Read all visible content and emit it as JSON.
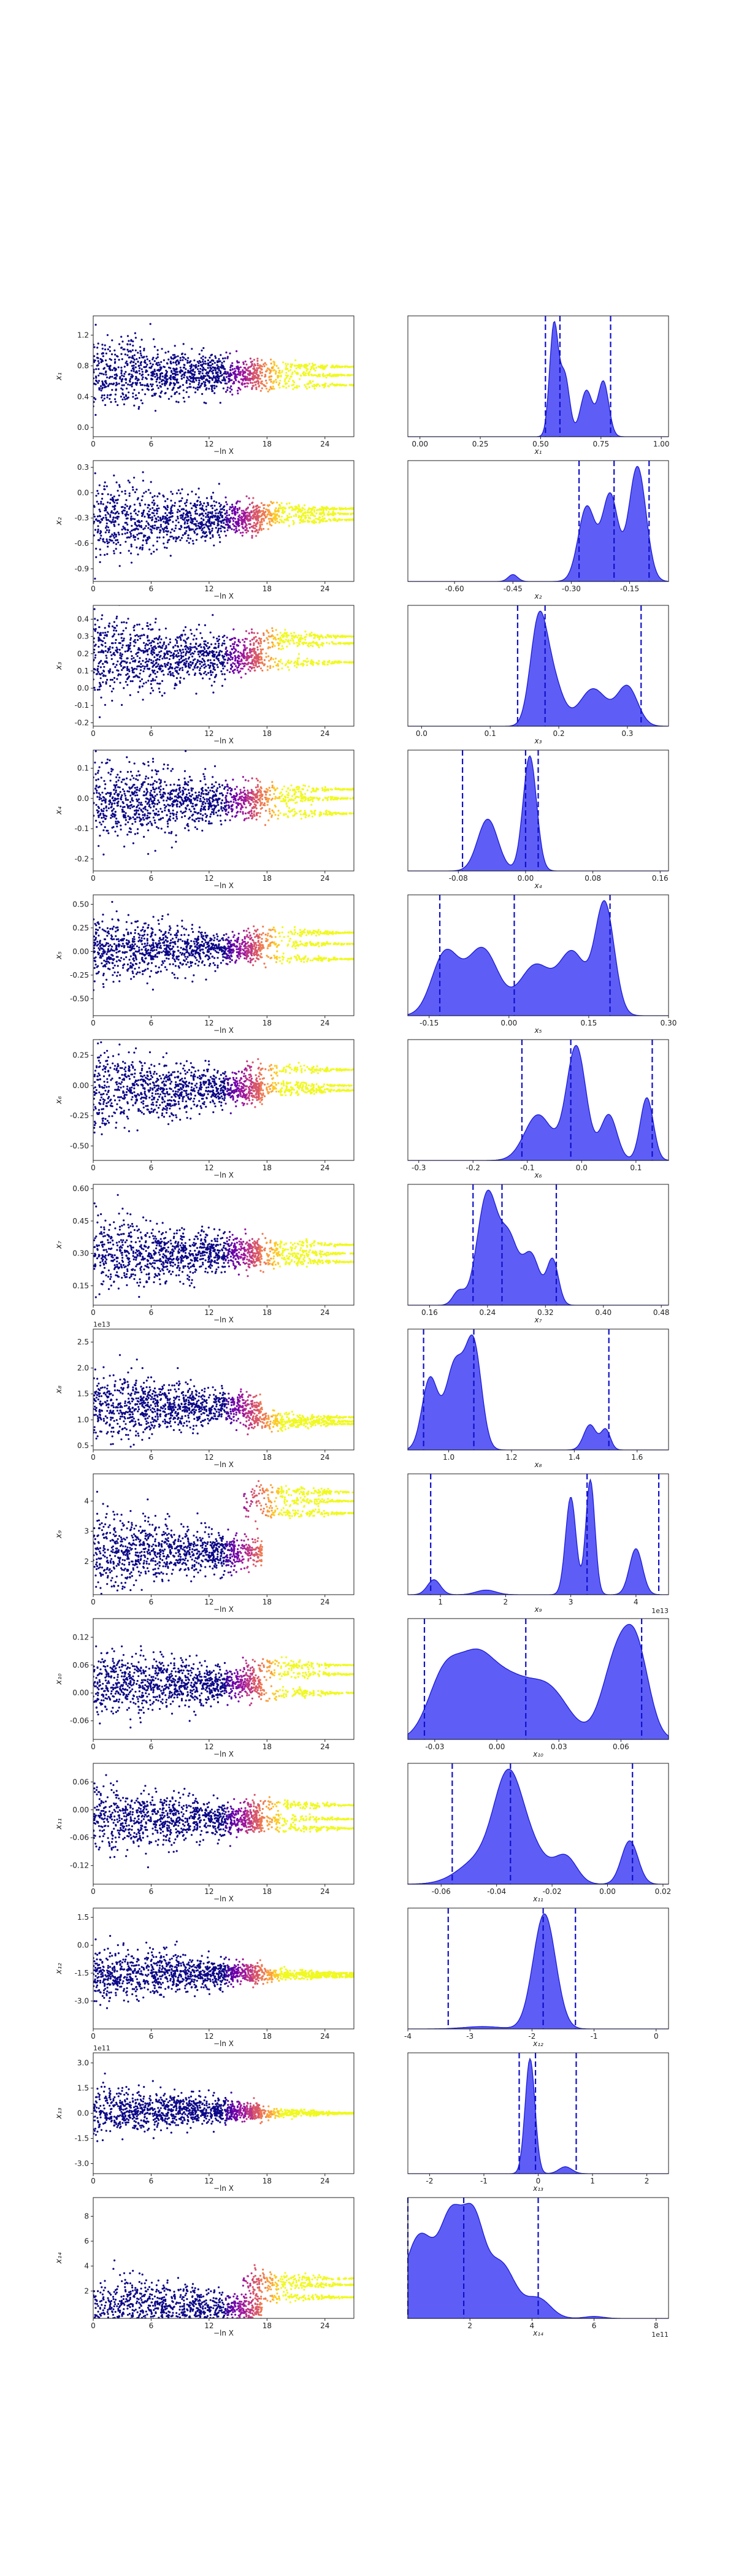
{
  "figure": {
    "scatter_xlabel": "−ln X",
    "scatter_colormap": [
      "#0d0887",
      "#46039f",
      "#7201a8",
      "#9c179e",
      "#bd3786",
      "#d8576b",
      "#ed7953",
      "#fb9f3a",
      "#fdca26",
      "#f0f921"
    ],
    "hist_fill_color": "#3b3bf5",
    "hist_line_color": "#1a1ad6",
    "quantile_line_style": "dashed"
  },
  "chart_data": [
    {
      "type": "scatter",
      "param": "x_1",
      "ylabel": "x₁",
      "xlabel": "−ln X",
      "xticks": [
        0,
        6,
        12,
        18,
        24
      ],
      "xlim": [
        0,
        27
      ],
      "yticks": [
        "0.0",
        "0.4",
        "0.8",
        "1.2"
      ],
      "ylim": [
        -0.12,
        1.45
      ],
      "center": 0.7,
      "spread": 0.32,
      "final_values": [
        0.55,
        0.68,
        0.79
      ]
    },
    {
      "type": "area",
      "param": "x_1",
      "xlabel": "x₁",
      "xticks": [
        "0.00",
        "0.25",
        "0.50",
        "0.75",
        "1.00"
      ],
      "xlim": [
        -0.05,
        1.03
      ],
      "peaks": [
        [
          0.555,
          1.0,
          0.018
        ],
        [
          0.6,
          0.55,
          0.02
        ],
        [
          0.69,
          0.42,
          0.025
        ],
        [
          0.76,
          0.5,
          0.022
        ]
      ],
      "quantiles": [
        0.52,
        0.58,
        0.79
      ]
    },
    {
      "type": "scatter",
      "param": "x_2",
      "ylabel": "x₂",
      "xlabel": "−ln X",
      "xticks": [
        0,
        6,
        12,
        18,
        24
      ],
      "xlim": [
        0,
        27
      ],
      "yticks": [
        "-0.9",
        "-0.6",
        "-0.3",
        "0.0",
        "0.3"
      ],
      "ylim": [
        -1.05,
        0.38
      ],
      "center": -0.3,
      "spread": 0.32,
      "final_values": [
        -0.25,
        -0.19,
        -0.32
      ]
    },
    {
      "type": "area",
      "param": "x_2",
      "xlabel": "x₂",
      "xticks": [
        "-0.60",
        "-0.45",
        "-0.30",
        "-0.15"
      ],
      "xlim": [
        -0.72,
        -0.05
      ],
      "peaks": [
        [
          -0.45,
          0.06,
          0.012
        ],
        [
          -0.26,
          0.65,
          0.022
        ],
        [
          -0.2,
          0.75,
          0.02
        ],
        [
          -0.13,
          1.0,
          0.022
        ]
      ],
      "quantiles": [
        -0.28,
        -0.19,
        -0.1
      ]
    },
    {
      "type": "scatter",
      "param": "x_3",
      "ylabel": "x₃",
      "xlabel": "−ln X",
      "xticks": [
        0,
        6,
        12,
        18,
        24
      ],
      "xlim": [
        0,
        27
      ],
      "yticks": [
        "-0.2",
        "-0.1",
        "0.0",
        "0.1",
        "0.2",
        "0.3",
        "0.4"
      ],
      "ylim": [
        -0.22,
        0.48
      ],
      "center": 0.18,
      "spread": 0.16,
      "final_values": [
        0.26,
        0.15,
        0.3
      ]
    },
    {
      "type": "area",
      "param": "x_3",
      "xlabel": "x₃",
      "xticks": [
        "0.0",
        "0.1",
        "0.2",
        "0.3"
      ],
      "xlim": [
        -0.02,
        0.36
      ],
      "peaks": [
        [
          0.17,
          1.0,
          0.012
        ],
        [
          0.19,
          0.5,
          0.015
        ],
        [
          0.25,
          0.4,
          0.02
        ],
        [
          0.3,
          0.42,
          0.015
        ]
      ],
      "quantiles": [
        0.14,
        0.18,
        0.32
      ]
    },
    {
      "type": "scatter",
      "param": "x_4",
      "ylabel": "x₄",
      "xlabel": "−ln X",
      "xticks": [
        0,
        6,
        12,
        18,
        24
      ],
      "xlim": [
        0,
        27
      ],
      "yticks": [
        "-0.2",
        "-0.1",
        "0.0",
        "0.1"
      ],
      "ylim": [
        -0.24,
        0.16
      ],
      "center": -0.01,
      "spread": 0.09,
      "final_values": [
        0.0,
        -0.05,
        0.03
      ]
    },
    {
      "type": "area",
      "param": "x_4",
      "xlabel": "x₄",
      "xticks": [
        "-0.08",
        "0.00",
        "0.08",
        "0.16"
      ],
      "xlim": [
        -0.14,
        0.17
      ],
      "peaks": [
        [
          -0.045,
          0.45,
          0.012
        ],
        [
          0.005,
          1.0,
          0.008
        ]
      ],
      "quantiles": [
        -0.075,
        0.0,
        0.015
      ]
    },
    {
      "type": "scatter",
      "param": "x_5",
      "ylabel": "x₅",
      "xlabel": "−ln X",
      "xticks": [
        0,
        6,
        12,
        18,
        24
      ],
      "xlim": [
        0,
        27
      ],
      "yticks": [
        "-0.50",
        "-0.25",
        "0.00",
        "0.25",
        "0.50"
      ],
      "ylim": [
        -0.68,
        0.6
      ],
      "center": 0.03,
      "spread": 0.24,
      "final_values": [
        0.2,
        0.08,
        -0.08
      ]
    },
    {
      "type": "area",
      "param": "x_5",
      "xlabel": "x₅",
      "xticks": [
        "-0.15",
        "0.00",
        "0.15",
        "0.30"
      ],
      "xlim": [
        -0.19,
        0.3
      ],
      "peaks": [
        [
          -0.12,
          0.55,
          0.025
        ],
        [
          -0.05,
          0.6,
          0.03
        ],
        [
          0.05,
          0.45,
          0.03
        ],
        [
          0.12,
          0.55,
          0.025
        ],
        [
          0.18,
          1.0,
          0.018
        ]
      ],
      "quantiles": [
        -0.13,
        0.01,
        0.19
      ]
    },
    {
      "type": "scatter",
      "param": "x_6",
      "ylabel": "x₆",
      "xlabel": "−ln X",
      "xticks": [
        0,
        6,
        12,
        18,
        24
      ],
      "xlim": [
        0,
        27
      ],
      "yticks": [
        "-0.50",
        "-0.25",
        "0.00",
        "0.25"
      ],
      "ylim": [
        -0.62,
        0.38
      ],
      "center": -0.03,
      "spread": 0.22,
      "final_values": [
        0.13,
        0.0,
        -0.04
      ]
    },
    {
      "type": "area",
      "param": "x_6",
      "xlabel": "x₆",
      "xticks": [
        "-0.3",
        "-0.2",
        "-0.1",
        "0.0",
        "0.1"
      ],
      "xlim": [
        -0.32,
        0.16
      ],
      "peaks": [
        [
          -0.08,
          0.4,
          0.025
        ],
        [
          -0.01,
          1.0,
          0.018
        ],
        [
          0.05,
          0.4,
          0.015
        ],
        [
          0.12,
          0.55,
          0.012
        ]
      ],
      "quantiles": [
        -0.11,
        -0.02,
        0.13
      ]
    },
    {
      "type": "scatter",
      "param": "x_7",
      "ylabel": "x₇",
      "xlabel": "−ln X",
      "xticks": [
        0,
        6,
        12,
        18,
        24
      ],
      "xlim": [
        0,
        27
      ],
      "yticks": [
        "0.15",
        "0.30",
        "0.45",
        "0.60"
      ],
      "ylim": [
        0.06,
        0.62
      ],
      "center": 0.3,
      "spread": 0.12,
      "final_values": [
        0.34,
        0.26,
        0.3
      ]
    },
    {
      "type": "area",
      "param": "x_7",
      "xlabel": "x₇",
      "xticks": [
        "0.16",
        "0.24",
        "0.32",
        "0.40",
        "0.48"
      ],
      "xlim": [
        0.13,
        0.49
      ],
      "peaks": [
        [
          0.2,
          0.12,
          0.008
        ],
        [
          0.24,
          1.0,
          0.014
        ],
        [
          0.27,
          0.55,
          0.012
        ],
        [
          0.3,
          0.45,
          0.012
        ],
        [
          0.33,
          0.4,
          0.008
        ]
      ],
      "quantiles": [
        0.22,
        0.26,
        0.335
      ]
    },
    {
      "type": "scatter",
      "param": "x_8",
      "ylabel": "x₈",
      "xlabel": "−ln X",
      "axis_offset_label": "1e13",
      "xticks": [
        0,
        6,
        12,
        18,
        24
      ],
      "xlim": [
        0,
        27
      ],
      "yticks": [
        "0.5",
        "1.0",
        "1.5",
        "2.0",
        "2.5"
      ],
      "ylim": [
        0.42,
        2.75
      ],
      "center": 1.25,
      "spread": 0.45,
      "final_values": [
        1.05,
        0.92,
        0.97
      ]
    },
    {
      "type": "area",
      "param": "x_8",
      "xlabel": "x₈",
      "xticks": [
        "1.0",
        "1.2",
        "1.4",
        "1.6"
      ],
      "xlim": [
        0.87,
        1.7
      ],
      "peaks": [
        [
          0.94,
          0.7,
          0.025
        ],
        [
          1.02,
          0.85,
          0.03
        ],
        [
          1.08,
          1.0,
          0.025
        ],
        [
          1.45,
          0.25,
          0.02
        ],
        [
          1.5,
          0.2,
          0.015
        ]
      ],
      "quantiles": [
        0.92,
        1.08,
        1.51
      ]
    },
    {
      "type": "scatter",
      "param": "x_9",
      "ylabel": "x₉",
      "xlabel": "−ln X",
      "xticks": [
        0,
        6,
        12,
        18,
        24
      ],
      "xlim": [
        0,
        27
      ],
      "yticks": [
        "2",
        "3",
        "4"
      ],
      "ylim": [
        0.9,
        4.9
      ],
      "center": 2.3,
      "spread": 0.9,
      "final_values": [
        4.3,
        3.6,
        4.0
      ]
    },
    {
      "type": "area",
      "param": "x_9",
      "xlabel": "x₉",
      "axis_offset_label": "1e13",
      "xticks": [
        "1",
        "2",
        "3",
        "4"
      ],
      "xlim": [
        0.5,
        4.5
      ],
      "peaks": [
        [
          0.9,
          0.13,
          0.1
        ],
        [
          1.7,
          0.04,
          0.15
        ],
        [
          3.0,
          0.85,
          0.08
        ],
        [
          3.3,
          1.0,
          0.07
        ],
        [
          4.0,
          0.4,
          0.1
        ]
      ],
      "quantiles": [
        0.85,
        3.25,
        4.35
      ]
    },
    {
      "type": "scatter",
      "param": "x_10",
      "ylabel": "x₁₀",
      "xlabel": "−ln X",
      "xticks": [
        0,
        6,
        12,
        18,
        24
      ],
      "xlim": [
        0,
        27
      ],
      "yticks": [
        "-0.06",
        "0.00",
        "0.06",
        "0.12"
      ],
      "ylim": [
        -0.1,
        0.16
      ],
      "center": 0.02,
      "spread": 0.05,
      "final_values": [
        0.06,
        0.0,
        0.04
      ]
    },
    {
      "type": "area",
      "param": "x_10",
      "xlabel": "x₁₀",
      "xticks": [
        "-0.03",
        "0.00",
        "0.03",
        "0.06"
      ],
      "xlim": [
        -0.043,
        0.083
      ],
      "peaks": [
        [
          -0.025,
          0.75,
          0.008
        ],
        [
          -0.01,
          0.7,
          0.008
        ],
        [
          0.005,
          0.6,
          0.01
        ],
        [
          0.025,
          0.55,
          0.01
        ],
        [
          0.058,
          0.9,
          0.007
        ],
        [
          0.068,
          0.85,
          0.006
        ]
      ],
      "quantiles": [
        -0.035,
        0.014,
        0.07
      ]
    },
    {
      "type": "scatter",
      "param": "x_11",
      "ylabel": "x₁₁",
      "xlabel": "−ln X",
      "xticks": [
        0,
        6,
        12,
        18,
        24
      ],
      "xlim": [
        0,
        27
      ],
      "yticks": [
        "-0.12",
        "-0.06",
        "0.00",
        "0.06"
      ],
      "ylim": [
        -0.16,
        0.1
      ],
      "center": -0.02,
      "spread": 0.05,
      "final_values": [
        0.01,
        -0.04,
        -0.02
      ]
    },
    {
      "type": "area",
      "param": "x_11",
      "xlabel": "x₁₁",
      "xticks": [
        "-0.06",
        "-0.04",
        "-0.02",
        "0.00",
        "0.02"
      ],
      "xlim": [
        -0.072,
        0.022
      ],
      "peaks": [
        [
          -0.045,
          0.3,
          0.008
        ],
        [
          -0.036,
          1.0,
          0.005
        ],
        [
          -0.028,
          0.4,
          0.006
        ],
        [
          -0.015,
          0.3,
          0.004
        ],
        [
          0.008,
          0.5,
          0.003
        ]
      ],
      "quantiles": [
        -0.056,
        -0.035,
        0.009
      ]
    },
    {
      "type": "scatter",
      "param": "x_12",
      "ylabel": "x₁₂",
      "xlabel": "−ln X",
      "xticks": [
        0,
        6,
        12,
        18,
        24
      ],
      "xlim": [
        0,
        27
      ],
      "yticks": [
        "-3.0",
        "-1.5",
        "0.0",
        "1.5"
      ],
      "ylim": [
        -4.5,
        2.0
      ],
      "center": -1.5,
      "spread": 1.0,
      "final_values": [
        -1.6,
        -1.7,
        -1.5
      ]
    },
    {
      "type": "area",
      "param": "x_12",
      "xlabel": "x₁₂",
      "xticks": [
        "-4",
        "-3",
        "-2",
        "-1",
        "0"
      ],
      "xlim": [
        -4.0,
        0.2
      ],
      "peaks": [
        [
          -2.8,
          0.02,
          0.3
        ],
        [
          -1.8,
          1.0,
          0.18
        ]
      ],
      "quantiles": [
        -3.35,
        -1.82,
        -1.3
      ]
    },
    {
      "type": "scatter",
      "param": "x_13",
      "ylabel": "x₁₃",
      "xlabel": "−ln X",
      "axis_offset_label": "1e11",
      "xticks": [
        0,
        6,
        12,
        18,
        24
      ],
      "xlim": [
        0,
        27
      ],
      "yticks": [
        "-3.0",
        "-1.5",
        "0.0",
        "1.5",
        "3.0"
      ],
      "ylim": [
        -3.6,
        3.6
      ],
      "center": 0.1,
      "spread": 1.0,
      "final_values": [
        0.0,
        0.02,
        -0.02
      ]
    },
    {
      "type": "area",
      "param": "x_13",
      "xlabel": "x₁₃",
      "xticks": [
        "-2",
        "-1",
        "0",
        "1",
        "2"
      ],
      "xlim": [
        -2.4,
        2.4
      ],
      "peaks": [
        [
          -0.15,
          1.0,
          0.09
        ],
        [
          0.5,
          0.06,
          0.12
        ]
      ],
      "quantiles": [
        -0.35,
        -0.05,
        0.7
      ]
    },
    {
      "type": "scatter",
      "param": "x_14",
      "ylabel": "x₁₄",
      "xlabel": "−ln X",
      "xticks": [
        0,
        6,
        12,
        18,
        24
      ],
      "xlim": [
        0,
        27
      ],
      "yticks": [
        "2",
        "4",
        "6",
        "8"
      ],
      "ylim": [
        -0.2,
        9.5
      ],
      "center": 0.5,
      "spread": 2.0,
      "final_values": [
        2.5,
        1.5,
        3.0
      ]
    },
    {
      "type": "area",
      "param": "x_14",
      "xlabel": "x₁₄",
      "axis_offset_label": "1e11",
      "xticks": [
        "2",
        "4",
        "6",
        "8"
      ],
      "xlim": [
        0.0,
        8.4
      ],
      "peaks": [
        [
          0.4,
          0.85,
          0.5
        ],
        [
          1.4,
          0.9,
          0.35
        ],
        [
          2.1,
          0.95,
          0.35
        ],
        [
          3.0,
          0.55,
          0.45
        ],
        [
          4.2,
          0.2,
          0.4
        ],
        [
          6.0,
          0.02,
          0.3
        ]
      ],
      "quantiles": [
        0.0,
        1.8,
        4.2
      ]
    }
  ]
}
